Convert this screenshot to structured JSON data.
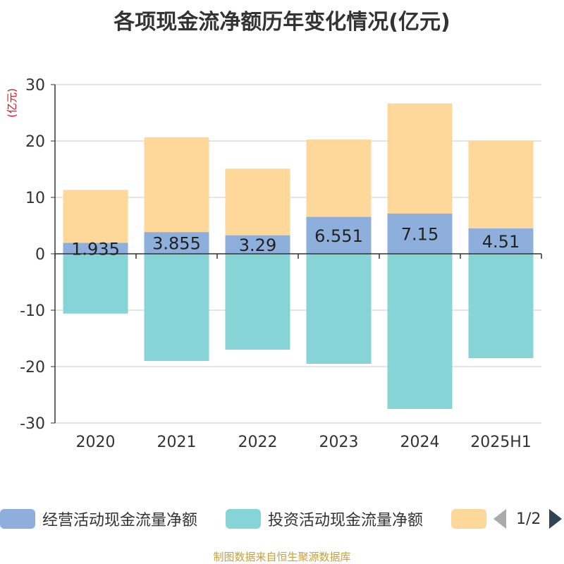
{
  "title": "各项现金流净额历年变化情况(亿元)",
  "unit_label": "(亿元)",
  "source": "制图数据来自恒生聚源数据库",
  "legend": {
    "items": [
      {
        "label": "经营活动现金流量净额",
        "color": "#8eaedc"
      },
      {
        "label": "投资活动现金流量净额",
        "color": "#86d4d6"
      },
      {
        "label": "",
        "color": "#fed89b"
      }
    ],
    "page": "1/2"
  },
  "chart_data": {
    "type": "bar",
    "stacked": true,
    "categories": [
      "2020",
      "2021",
      "2022",
      "2023",
      "2024",
      "2025H1"
    ],
    "ylim": [
      -30,
      30
    ],
    "yticks": [
      30,
      20,
      10,
      0,
      -10,
      -20,
      -30
    ],
    "grid": true,
    "legend_position": "bottom",
    "series": [
      {
        "name": "经营活动现金流量净额",
        "color": "#8eaedc",
        "values": [
          1.935,
          3.855,
          3.29,
          6.551,
          7.15,
          4.51
        ],
        "show_labels": true
      },
      {
        "name": "投资活动现金流量净额",
        "color": "#86d4d6",
        "values": [
          -10.6,
          -19.0,
          -17.0,
          -19.5,
          -27.5,
          -18.5
        ],
        "show_labels": false
      },
      {
        "color": "#fed89b",
        "values": [
          9.4,
          16.8,
          11.8,
          13.7,
          19.5,
          15.6
        ],
        "show_labels": false
      }
    ]
  }
}
